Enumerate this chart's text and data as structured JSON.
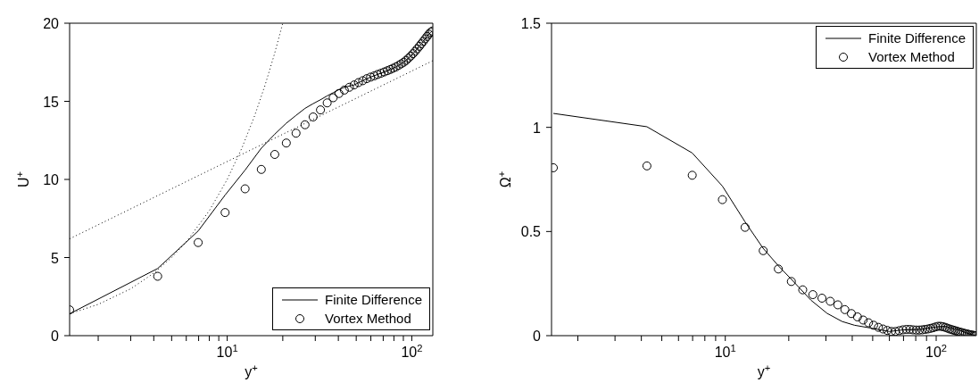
{
  "chart_data": [
    {
      "type": "line",
      "xlabel": "y$^{+}$",
      "ylabel": "U$^{+}$",
      "log": "x",
      "xlim": [
        1.4,
        130
      ],
      "ylim": [
        0,
        20
      ],
      "xticks": [
        {
          "value": 2,
          "label": null
        },
        {
          "value": 3,
          "label": null
        },
        {
          "value": 4,
          "label": null
        },
        {
          "value": 5,
          "label": null
        },
        {
          "value": 6,
          "label": null
        },
        {
          "value": 7,
          "label": null
        },
        {
          "value": 8,
          "label": null
        },
        {
          "value": 9,
          "label": null
        },
        {
          "value": 10,
          "label": "10$^{1}$"
        },
        {
          "value": 20,
          "label": null
        },
        {
          "value": 30,
          "label": null
        },
        {
          "value": 40,
          "label": null
        },
        {
          "value": 50,
          "label": null
        },
        {
          "value": 60,
          "label": null
        },
        {
          "value": 70,
          "label": null
        },
        {
          "value": 80,
          "label": null
        },
        {
          "value": 90,
          "label": null
        },
        {
          "value": 100,
          "label": "10$^{2}$"
        }
      ],
      "yticks": [
        0,
        5,
        10,
        15,
        20
      ],
      "legend": "bottom right",
      "series": [
        {
          "color": "#000000",
          "line_style": "dotted",
          "marker": "none",
          "x": [
            1.4,
            2,
            3,
            4,
            5,
            6,
            8,
            10,
            12,
            14,
            16,
            18,
            20
          ],
          "values": [
            1.4,
            2,
            3,
            4,
            5,
            6,
            8,
            10,
            12,
            14,
            16,
            18,
            20
          ]
        },
        {
          "color": "#000000",
          "line_style": "dotted",
          "marker": "none",
          "x": [
            1.4,
            130
          ],
          "values": [
            6.2,
            17.6
          ]
        },
        {
          "name": "Finite Difference",
          "color": "#000000",
          "line_style": "solid",
          "marker": "none",
          "x": [
            1.4,
            4.2,
            6.96,
            9.74,
            12.5,
            15.3,
            18.1,
            20.9,
            23.6,
            26.4,
            29.2,
            32.0,
            34.8,
            37.5,
            40.3,
            43.1,
            48.7,
            54.2,
            59.8,
            65.3,
            70.9,
            76.5,
            82.0,
            87.6,
            93.1,
            98.7,
            104.3,
            109.8,
            115.4,
            120.9,
            126.5,
            129.3
          ],
          "values": [
            1.4,
            4.3,
            6.7,
            9.0,
            10.6,
            12.0,
            12.9,
            13.6,
            14.1,
            14.55,
            14.85,
            15.1,
            15.35,
            15.55,
            15.75,
            15.9,
            16.05,
            16.32,
            16.55,
            16.72,
            16.88,
            17.04,
            17.2,
            17.4,
            17.62,
            17.9,
            18.2,
            18.52,
            18.84,
            19.15,
            19.42,
            19.5
          ]
        },
        {
          "name": "Vortex Method",
          "type": "scatter",
          "color": "#000000",
          "marker": "circle",
          "x": [
            1.4,
            4.2,
            6.96,
            9.74,
            12.5,
            15.3,
            18.1,
            20.9,
            23.6,
            26.4,
            29.2,
            32.0,
            34.8,
            37.5,
            40.3,
            43.1,
            45.9,
            48.7,
            51.4,
            54.2,
            57.0,
            59.8,
            62.6,
            65.3,
            68.1,
            70.9,
            73.7,
            76.5,
            79.2,
            82.0,
            84.8,
            87.6,
            90.4,
            93.1,
            95.9,
            98.7,
            101.5,
            104.3,
            107.0,
            109.8,
            112.6,
            115.4,
            118.2,
            120.9,
            123.7,
            126.5,
            129.3
          ],
          "values": [
            1.65,
            3.8,
            5.96,
            7.88,
            9.4,
            10.64,
            11.6,
            12.33,
            12.96,
            13.5,
            14.0,
            14.45,
            14.9,
            15.23,
            15.5,
            15.72,
            15.9,
            16.05,
            16.2,
            16.32,
            16.45,
            16.55,
            16.63,
            16.72,
            16.8,
            16.88,
            16.96,
            17.04,
            17.12,
            17.2,
            17.3,
            17.4,
            17.5,
            17.62,
            17.76,
            17.9,
            18.05,
            18.2,
            18.36,
            18.52,
            18.68,
            18.84,
            19.0,
            19.15,
            19.3,
            19.42,
            19.5
          ]
        }
      ]
    },
    {
      "type": "line",
      "xlabel": "y$^{+}$",
      "ylabel": "Ω$^{+}$",
      "log": "x",
      "xlim": [
        1.5,
        155
      ],
      "ylim": [
        0,
        1.5
      ],
      "xticks": [
        {
          "value": 2,
          "label": null
        },
        {
          "value": 3,
          "label": null
        },
        {
          "value": 4,
          "label": null
        },
        {
          "value": 5,
          "label": null
        },
        {
          "value": 6,
          "label": null
        },
        {
          "value": 7,
          "label": null
        },
        {
          "value": 8,
          "label": null
        },
        {
          "value": 9,
          "label": null
        },
        {
          "value": 10,
          "label": "10$^{1}$"
        },
        {
          "value": 20,
          "label": null
        },
        {
          "value": 30,
          "label": null
        },
        {
          "value": 40,
          "label": null
        },
        {
          "value": 50,
          "label": null
        },
        {
          "value": 60,
          "label": null
        },
        {
          "value": 70,
          "label": null
        },
        {
          "value": 80,
          "label": null
        },
        {
          "value": 90,
          "label": null
        },
        {
          "value": 100,
          "label": "10$^{2}$"
        }
      ],
      "yticks": [
        0,
        0.5,
        1,
        1.5
      ],
      "legend": "top right",
      "series": [
        {
          "name": "Finite Difference",
          "color": "#000000",
          "line_style": "solid",
          "marker": "none",
          "x": [
            1.53,
            4.25,
            6.97,
            9.69,
            12.4,
            15.1,
            17.9,
            20.6,
            25.5,
            30.4,
            35.8,
            41,
            50,
            60,
            70,
            85,
            100,
            110,
            125,
            140,
            153.8
          ],
          "values": [
            1.067,
            1.003,
            0.877,
            0.718,
            0.547,
            0.42,
            0.334,
            0.27,
            0.17,
            0.107,
            0.068,
            0.05,
            0.035,
            0.02,
            0.028,
            0.03,
            0.042,
            0.045,
            0.03,
            0.012,
            0
          ]
        },
        {
          "name": "Vortex Method",
          "type": "scatter",
          "color": "#000000",
          "marker": "circle",
          "x": [
            1.53,
            4.25,
            6.97,
            9.69,
            12.41,
            15.13,
            17.85,
            20.57,
            23.29,
            26.01,
            28.73,
            31.45,
            34.17,
            36.89,
            39.61,
            42.33,
            45.05,
            47.77,
            50.49,
            53.21,
            55.93,
            58.65,
            61.37,
            64.09,
            66.81,
            69.53,
            72.25,
            74.97,
            77.69,
            80.41,
            83.13,
            85.85,
            88.57,
            91.29,
            94.01,
            96.73,
            99.45,
            102.17,
            104.89,
            107.61,
            110.33,
            113.05,
            115.77,
            118.49,
            121.21,
            123.93,
            126.65,
            129.37,
            132.09,
            134.81,
            137.53,
            140.25,
            142.97,
            145.69,
            148.41,
            151.13,
            153.85
          ],
          "values": [
            0.806,
            0.815,
            0.77,
            0.653,
            0.52,
            0.408,
            0.32,
            0.26,
            0.22,
            0.197,
            0.18,
            0.165,
            0.148,
            0.125,
            0.106,
            0.09,
            0.075,
            0.062,
            0.05,
            0.04,
            0.032,
            0.025,
            0.02,
            0.02,
            0.024,
            0.028,
            0.03,
            0.03,
            0.028,
            0.027,
            0.027,
            0.028,
            0.03,
            0.032,
            0.035,
            0.038,
            0.042,
            0.045,
            0.045,
            0.043,
            0.04,
            0.036,
            0.032,
            0.029,
            0.026,
            0.023,
            0.02,
            0.017,
            0.015,
            0.012,
            0.01,
            0.008,
            0.006,
            0.004,
            0.003,
            0.001,
            0
          ]
        }
      ]
    }
  ]
}
